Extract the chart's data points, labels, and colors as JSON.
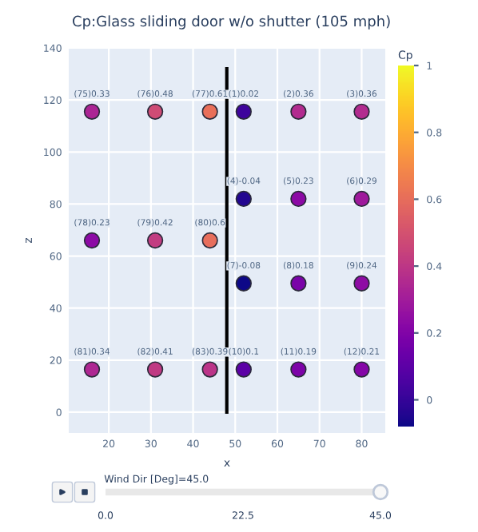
{
  "chart_data": {
    "type": "scatter",
    "title": "Cp:Glass sliding door w/o shutter (105 mph)",
    "xlabel": "x",
    "ylabel": "z",
    "clabel": "Cp",
    "xlim": [
      10.5,
      85.6
    ],
    "ylim": [
      -8,
      140
    ],
    "xticks": [
      20,
      30,
      40,
      50,
      60,
      70,
      80
    ],
    "yticks": [
      0,
      20,
      40,
      60,
      80,
      100,
      120,
      140
    ],
    "clim": [
      -0.08,
      1
    ],
    "cticks": [
      0,
      0.2,
      0.4,
      0.6,
      0.8,
      1
    ],
    "grid": true,
    "series": [
      {
        "type": "scatter",
        "marker": "circle",
        "colors": [
          "#ab2494",
          "#cf4c75",
          "#e96f59",
          "#3e049c",
          "#b22b8f",
          "#b22b8f",
          "#220690",
          "#8c0aa5",
          "#9f199c",
          "#8c0aa5",
          "#c23d81",
          "#e76e5c",
          "#0d0887",
          "#7a03a8",
          "#8e0ca4",
          "#ae2792",
          "#c03a83",
          "#bb3488",
          "#5c01a6",
          "#7d03a8",
          "#8506a7"
        ],
        "x": [
          16,
          31,
          44,
          52,
          65,
          80,
          52,
          65,
          80,
          16,
          31,
          44,
          52,
          65,
          80,
          16,
          31,
          44,
          52,
          65,
          80
        ],
        "values": [
          115.5,
          115.5,
          115.5,
          115.5,
          115.5,
          115.5,
          82,
          82,
          82,
          66,
          66,
          66,
          49.5,
          49.5,
          49.5,
          16.4,
          16.4,
          16.4,
          16.4,
          16.4,
          16.4
        ],
        "value_labels": [
          "(75)0.33",
          "(76)0.48",
          "(77)0.61",
          "(1)0.02",
          "(2)0.36",
          "(3)0.36",
          "(4)-0.04",
          "(5)0.23",
          "(6)0.29",
          "(78)0.23",
          "(79)0.42",
          "(80)0.6",
          "(7)-0.08",
          "(8)0.18",
          "(9)0.24",
          "(81)0.34",
          "(82)0.41",
          "(83)0.39",
          "(10)0.1",
          "(11)0.19",
          "(12)0.21"
        ]
      },
      {
        "type": "line",
        "x": [
          48,
          48
        ],
        "values": [
          0,
          132
        ],
        "color": "#000000"
      }
    ],
    "annotations": [
      "Wind Dir [Deg]=45.0",
      "0.0",
      "22.5",
      "45.0"
    ]
  }
}
